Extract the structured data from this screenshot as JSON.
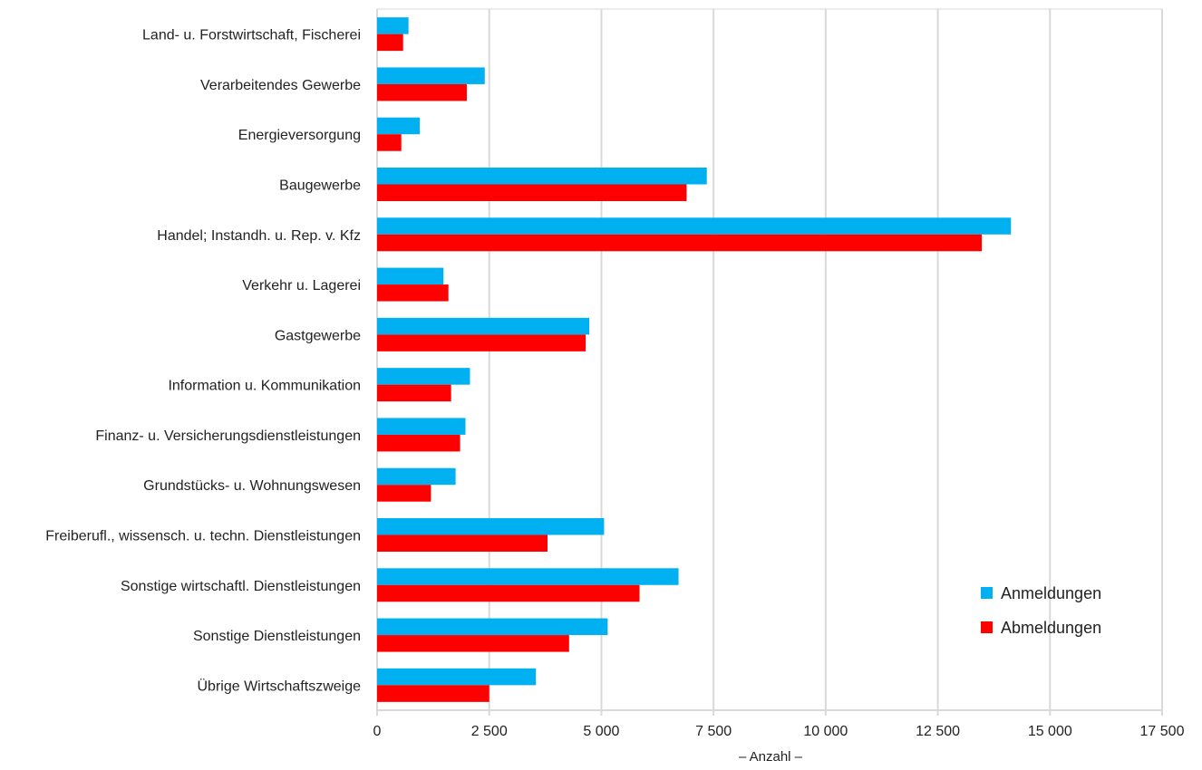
{
  "chart_data": {
    "type": "bar",
    "orientation": "horizontal",
    "categories": [
      "Land- u. Forstwirtschaft, Fischerei",
      "Verarbeitendes Gewerbe",
      "Energieversorgung",
      "Baugewerbe",
      "Handel; Instandh. u. Rep. v. Kfz",
      "Verkehr u. Lagerei",
      "Gastgewerbe",
      "Information u. Kommunikation",
      "Finanz- u. Versicherungsdienstleistungen",
      "Grundstücks- u. Wohnungswesen",
      "Freiberufl., wissensch. u. techn. Dienstleistungen",
      "Sonstige wirtschaftl. Dienstleistungen",
      "Sonstige Dienstleistungen",
      "Übrige Wirtschaftszweige"
    ],
    "series": [
      {
        "name": "Anmeldungen",
        "color": "#00b0f0",
        "values": [
          700,
          2400,
          950,
          7350,
          14130,
          1480,
          4730,
          2070,
          1970,
          1750,
          5060,
          6720,
          5140,
          3540
        ]
      },
      {
        "name": "Abmeldungen",
        "color": "#ff0000",
        "values": [
          580,
          2000,
          540,
          6900,
          13480,
          1590,
          4650,
          1650,
          1850,
          1200,
          3800,
          5850,
          4280,
          2500
        ]
      }
    ],
    "xlim": [
      0,
      17500
    ],
    "xticks": [
      0,
      2500,
      5000,
      7500,
      10000,
      12500,
      15000,
      17500
    ],
    "xtick_labels": [
      "0",
      "2 500",
      "5 000",
      "7 500",
      "10 000",
      "12 500",
      "15 000",
      "17 500"
    ],
    "xlabel": "– Anzahl –",
    "ylabel": "",
    "title": "",
    "grid": "vertical",
    "legend_position": "bottom-right"
  }
}
